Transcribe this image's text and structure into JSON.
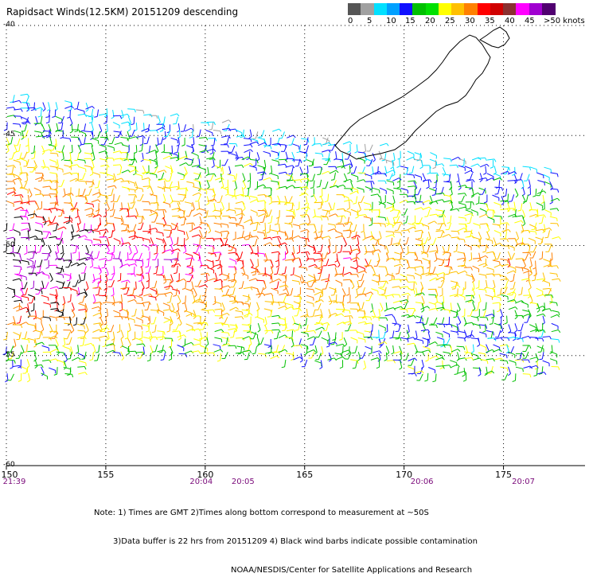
{
  "title": "Rapidsact Winds(12.5KM) 20151209 descending",
  "legend": {
    "colors": [
      "#555555",
      "#a0a0a0",
      "#00e0ff",
      "#00a0ff",
      "#1010ff",
      "#00c000",
      "#00e000",
      "#ffff00",
      "#ffc000",
      "#ff8000",
      "#ff0000",
      "#d00000",
      "#8a3030",
      "#ff00ff",
      "#a000d0",
      "#500070"
    ],
    "labels": [
      "0",
      "5",
      "10",
      "15",
      "20",
      "25",
      "30",
      "35",
      "40",
      "45",
      ">50 knots"
    ]
  },
  "map": {
    "x_ticks": [
      "150",
      "155",
      "160",
      "165",
      "170",
      "175"
    ],
    "x_values": [
      150,
      155,
      160,
      165,
      170,
      175
    ],
    "y_labels": [
      "-40",
      "-45",
      "-50",
      "-55",
      "-60"
    ],
    "y_values": [
      -40,
      -45,
      -50,
      -55,
      -60
    ],
    "times": [
      {
        "lon": 150.4,
        "label": "21:39"
      },
      {
        "lon": 159.8,
        "label": "20:04"
      },
      {
        "lon": 161.9,
        "label": "20:05"
      },
      {
        "lon": 170.9,
        "label": "20:06"
      },
      {
        "lon": 176.0,
        "label": "20:07"
      }
    ]
  },
  "notes": {
    "line1": "Note: 1) Times are GMT 2)Times along bottom correspond to measurement at ~50S",
    "line2": "3)Data buffer is 22 hrs from 20151209 4) Black wind barbs indicate possible contamination",
    "line3": "NOAA/NESDIS/Center for Satellite Applications and Research"
  },
  "coastline": {
    "name": "New Zealand South Island"
  }
}
